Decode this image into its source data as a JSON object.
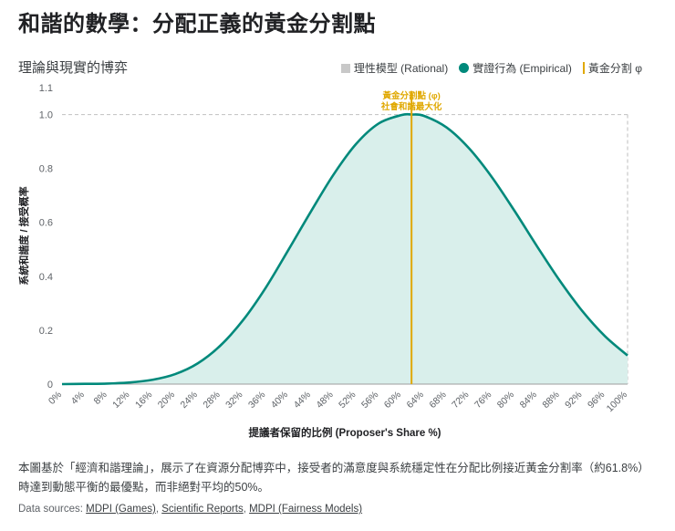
{
  "page": {
    "title": "和諧的數學：分配正義的黃金分割點",
    "description": "本圖基於「經濟和諧理論」，展示了在資源分配博弈中，接受者的滿意度與系統穩定性在分配比例接近黃金分割率（約61.8%）時達到動態平衡的最優點，而非絕對平均的50%。",
    "sources_prefix": "Data sources:",
    "sources": [
      "MDPI (Games)",
      "Scientific Reports",
      "MDPI (Fairness Models)"
    ]
  },
  "chart_data": {
    "type": "area",
    "subtitle": "理論與現實的博弈",
    "xlabel": "提議者保留的比例 (Proposer's Share %)",
    "ylabel": "系統和諧度 / 接受概率",
    "xlim": [
      0,
      100
    ],
    "ylim": [
      0,
      1.1
    ],
    "x_ticks": [
      "0%",
      "4%",
      "8%",
      "12%",
      "16%",
      "20%",
      "24%",
      "28%",
      "32%",
      "36%",
      "40%",
      "44%",
      "48%",
      "52%",
      "56%",
      "60%",
      "64%",
      "68%",
      "72%",
      "76%",
      "80%",
      "84%",
      "88%",
      "92%",
      "96%",
      "100%"
    ],
    "y_ticks": [
      "0",
      "0.2",
      "0.4",
      "0.6",
      "0.8",
      "1.0",
      "1.1"
    ],
    "y_tick_values": [
      0,
      0.2,
      0.4,
      0.6,
      0.8,
      1.0,
      1.1
    ],
    "legend_position": "top-right",
    "legend": [
      {
        "label": "理性模型 (Rational)",
        "color": "#c8c8c8",
        "shape": "square"
      },
      {
        "label": "實證行為 (Empirical)",
        "color": "#00897b",
        "shape": "circle"
      },
      {
        "label": "黃金分割 φ",
        "color": "#e0a800",
        "shape": "line"
      }
    ],
    "series": [
      {
        "name": "實證行為 (Empirical)",
        "color": "#00897b",
        "x": [
          0,
          4,
          8,
          12,
          16,
          20,
          24,
          28,
          32,
          36,
          40,
          44,
          48,
          52,
          56,
          60,
          61.8,
          64,
          68,
          72,
          76,
          80,
          84,
          88,
          92,
          96,
          100
        ],
        "values": [
          0.0,
          0.001,
          0.002,
          0.006,
          0.016,
          0.037,
          0.077,
          0.143,
          0.237,
          0.357,
          0.497,
          0.64,
          0.777,
          0.891,
          0.967,
          0.998,
          1.0,
          0.995,
          0.952,
          0.874,
          0.768,
          0.643,
          0.511,
          0.384,
          0.271,
          0.178,
          0.106
        ]
      },
      {
        "name": "理性模型 (Rational)",
        "color": "#c8c8c8",
        "x": [
          0,
          100
        ],
        "values": [
          1.0,
          1.0
        ]
      }
    ],
    "golden_ratio_x": 61.8,
    "annotation_line1": "黃金分割點 (φ)",
    "annotation_line2": "社會和諧最大化",
    "colors": {
      "empirical": "#00897b",
      "empirical_fill": "#d9efeb",
      "golden": "#e0a800",
      "rational": "#c8c8c8",
      "axis": "#9e9e9e"
    }
  }
}
